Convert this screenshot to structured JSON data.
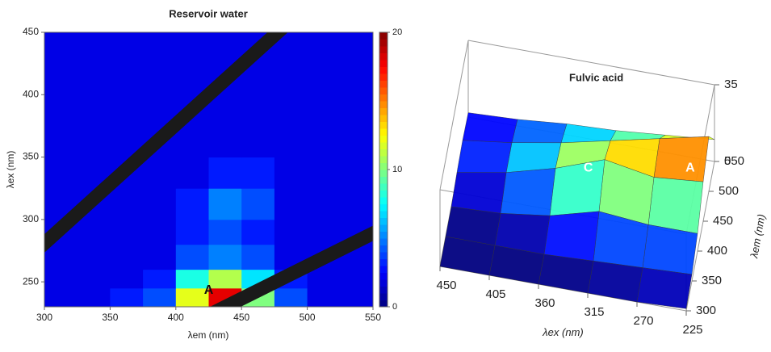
{
  "chart_data": [
    {
      "type": "heatmap",
      "title": "Reservoir water",
      "x_label": "λem (nm)",
      "y_label": "λex (nm)",
      "xbins": [
        300,
        325,
        350,
        375,
        400,
        425,
        450,
        475,
        500,
        525,
        550
      ],
      "ybins": [
        230,
        245,
        260,
        280,
        300,
        325,
        350,
        375,
        400,
        425,
        450
      ],
      "values": [
        [
          2,
          2,
          3,
          4,
          12,
          18,
          10,
          4,
          2,
          2
        ],
        [
          2,
          2,
          2,
          3,
          8,
          11,
          7,
          3,
          2,
          2
        ],
        [
          2,
          2,
          2,
          2,
          4,
          5,
          4,
          2,
          2,
          2
        ],
        [
          2,
          2,
          2,
          2,
          3,
          4,
          3,
          2,
          2,
          2
        ],
        [
          2,
          2,
          2,
          2,
          3,
          5,
          4,
          2,
          2,
          2
        ],
        [
          2,
          2,
          2,
          2,
          2,
          3,
          3,
          2,
          2,
          2
        ],
        [
          2,
          2,
          2,
          2,
          2,
          2,
          2,
          2,
          2,
          2
        ],
        [
          2,
          2,
          2,
          2,
          2,
          2,
          2,
          2,
          2,
          2
        ],
        [
          2,
          2,
          2,
          2,
          2,
          2,
          2,
          2,
          2,
          2
        ],
        [
          2,
          2,
          2,
          2,
          2,
          2,
          2,
          2,
          2,
          2
        ]
      ],
      "xlim": [
        300,
        550
      ],
      "xticks": [
        300,
        350,
        400,
        450,
        500,
        550
      ],
      "ylim": [
        230,
        450
      ],
      "yticks": [
        250,
        300,
        350,
        400,
        450
      ],
      "zlim": [
        0,
        20
      ],
      "zticks": [
        0,
        10,
        20
      ],
      "colormap": "jet",
      "annotations": [
        "A"
      ]
    },
    {
      "type": "surface3d",
      "title": "Fulvic acid",
      "x_label": "λex (nm)",
      "y_label": "λem (nm)",
      "x": [
        225,
        270,
        315,
        360,
        405,
        450
      ],
      "y": [
        300,
        350,
        400,
        450,
        500,
        550
      ],
      "values": [
        [
          1,
          3,
          8,
          18,
          25,
          10
        ],
        [
          0,
          2,
          8,
          16,
          20,
          8
        ],
        [
          0,
          1,
          10,
          20,
          15,
          6
        ],
        [
          0,
          0,
          4,
          12,
          10,
          5
        ],
        [
          0,
          0,
          1,
          6,
          6,
          3
        ],
        [
          0,
          0,
          0,
          2,
          3,
          2
        ]
      ],
      "xlim": [
        225,
        450
      ],
      "xticks": [
        450,
        405,
        360,
        315,
        270,
        225
      ],
      "ylim": [
        300,
        550
      ],
      "yticks": [
        300,
        350,
        400,
        450,
        500,
        550
      ],
      "zlim": [
        0,
        35
      ],
      "zticks": [
        0,
        35
      ],
      "colormap": "jet",
      "annotations": [
        "C",
        "A"
      ]
    }
  ]
}
